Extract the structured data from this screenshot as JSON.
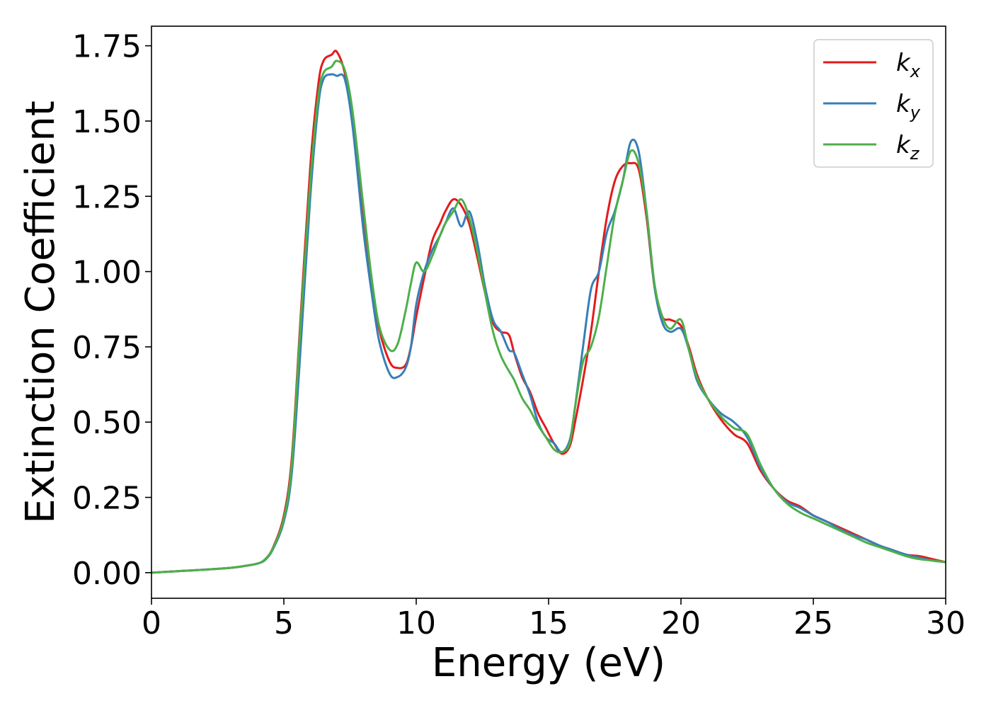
{
  "chart_data": {
    "type": "line",
    "title": "",
    "xlabel": "Energy (eV)",
    "ylabel": "Extinction Coefficient",
    "xlim": [
      0,
      30
    ],
    "ylim": [
      -0.085,
      1.815
    ],
    "xticks": [
      0,
      5,
      10,
      15,
      20,
      25,
      30
    ],
    "xtick_labels": [
      "0",
      "5",
      "10",
      "15",
      "20",
      "25",
      "30"
    ],
    "yticks": [
      0,
      0.25,
      0.5,
      0.75,
      1.0,
      1.25,
      1.5,
      1.75
    ],
    "ytick_labels": [
      "0.00",
      "0.25",
      "0.50",
      "0.75",
      "1.00",
      "1.25",
      "1.50",
      "1.75"
    ],
    "grid": false,
    "legend_position": "top-right",
    "series": [
      {
        "name": "k",
        "subscript": "x",
        "color": "#e41a1c",
        "x": [
          0,
          1,
          2,
          3,
          3.5,
          4,
          4.3,
          4.6,
          5,
          5.3,
          5.6,
          6,
          6.3,
          6.5,
          6.8,
          7,
          7.3,
          7.6,
          8,
          8.3,
          8.6,
          9,
          9.3,
          9.6,
          9.8,
          10,
          10.3,
          10.6,
          10.9,
          11.1,
          11.4,
          11.7,
          12,
          12.3,
          12.6,
          12.9,
          13.2,
          13.5,
          13.7,
          14,
          14.3,
          14.6,
          14.9,
          15.2,
          15.5,
          15.8,
          16,
          16.3,
          16.6,
          16.9,
          17.2,
          17.5,
          17.8,
          18.1,
          18.4,
          18.7,
          19,
          19.3,
          19.6,
          20,
          20.3,
          20.6,
          21,
          21.5,
          22,
          22.5,
          23,
          23.5,
          24,
          24.5,
          25,
          25.5,
          26,
          26.5,
          27,
          27.5,
          28,
          28.5,
          29,
          29.5,
          30
        ],
        "values": [
          0,
          0.005,
          0.01,
          0.016,
          0.022,
          0.03,
          0.045,
          0.085,
          0.19,
          0.38,
          0.8,
          1.35,
          1.62,
          1.7,
          1.72,
          1.73,
          1.66,
          1.5,
          1.2,
          0.98,
          0.81,
          0.7,
          0.68,
          0.69,
          0.75,
          0.85,
          0.98,
          1.1,
          1.16,
          1.2,
          1.24,
          1.22,
          1.16,
          1.05,
          0.93,
          0.83,
          0.8,
          0.79,
          0.73,
          0.65,
          0.6,
          0.53,
          0.48,
          0.43,
          0.395,
          0.42,
          0.5,
          0.64,
          0.8,
          1.0,
          1.18,
          1.3,
          1.35,
          1.36,
          1.34,
          1.18,
          0.95,
          0.85,
          0.84,
          0.82,
          0.75,
          0.66,
          0.58,
          0.51,
          0.46,
          0.43,
          0.34,
          0.28,
          0.24,
          0.22,
          0.19,
          0.17,
          0.15,
          0.13,
          0.11,
          0.09,
          0.075,
          0.06,
          0.055,
          0.045,
          0.035
        ]
      },
      {
        "name": "k",
        "subscript": "y",
        "color": "#377eb8",
        "x": [
          0,
          1,
          2,
          3,
          3.5,
          4,
          4.3,
          4.6,
          5,
          5.3,
          5.6,
          6,
          6.3,
          6.5,
          6.8,
          7,
          7.3,
          7.6,
          8,
          8.3,
          8.6,
          9,
          9.3,
          9.6,
          9.8,
          10,
          10.3,
          10.6,
          10.9,
          11.1,
          11.4,
          11.7,
          12,
          12.3,
          12.6,
          12.9,
          13.2,
          13.5,
          13.7,
          14,
          14.3,
          14.6,
          14.9,
          15.2,
          15.5,
          15.8,
          16,
          16.3,
          16.6,
          16.9,
          17.2,
          17.5,
          17.8,
          18.1,
          18.4,
          18.7,
          19,
          19.3,
          19.6,
          20,
          20.3,
          20.6,
          21,
          21.5,
          22,
          22.5,
          23,
          23.5,
          24,
          24.5,
          25,
          25.5,
          26,
          26.5,
          27,
          27.5,
          28,
          28.5,
          29,
          29.5,
          30
        ],
        "values": [
          0,
          0.005,
          0.01,
          0.016,
          0.022,
          0.03,
          0.043,
          0.08,
          0.17,
          0.33,
          0.7,
          1.25,
          1.55,
          1.64,
          1.655,
          1.65,
          1.64,
          1.48,
          1.14,
          0.94,
          0.77,
          0.66,
          0.65,
          0.68,
          0.75,
          0.89,
          1.0,
          1.07,
          1.12,
          1.16,
          1.21,
          1.15,
          1.2,
          1.1,
          0.95,
          0.84,
          0.8,
          0.74,
          0.73,
          0.66,
          0.59,
          0.5,
          0.45,
          0.43,
          0.4,
          0.44,
          0.55,
          0.75,
          0.94,
          1.0,
          1.13,
          1.2,
          1.3,
          1.43,
          1.4,
          1.2,
          0.95,
          0.83,
          0.8,
          0.81,
          0.74,
          0.64,
          0.58,
          0.53,
          0.5,
          0.45,
          0.35,
          0.28,
          0.235,
          0.215,
          0.19,
          0.17,
          0.145,
          0.125,
          0.11,
          0.09,
          0.075,
          0.06,
          0.05,
          0.04,
          0.035
        ]
      },
      {
        "name": "k",
        "subscript": "z",
        "color": "#4daf4a",
        "x": [
          0,
          1,
          2,
          3,
          3.5,
          4,
          4.3,
          4.6,
          5,
          5.3,
          5.6,
          6,
          6.3,
          6.5,
          6.8,
          7,
          7.3,
          7.6,
          8,
          8.3,
          8.6,
          9,
          9.3,
          9.6,
          9.8,
          10,
          10.3,
          10.6,
          10.9,
          11.1,
          11.4,
          11.7,
          12,
          12.3,
          12.6,
          12.9,
          13.2,
          13.5,
          13.7,
          14,
          14.3,
          14.6,
          14.9,
          15.2,
          15.5,
          15.8,
          16,
          16.3,
          16.6,
          16.9,
          17.2,
          17.5,
          17.8,
          18.1,
          18.4,
          18.7,
          19,
          19.3,
          19.6,
          20,
          20.3,
          20.6,
          21,
          21.5,
          22,
          22.5,
          23,
          23.5,
          24,
          24.5,
          25,
          25.5,
          26,
          26.5,
          27,
          27.5,
          28,
          28.5,
          29,
          29.5,
          30
        ],
        "values": [
          0,
          0.005,
          0.01,
          0.016,
          0.022,
          0.03,
          0.045,
          0.083,
          0.18,
          0.36,
          0.78,
          1.3,
          1.58,
          1.66,
          1.68,
          1.7,
          1.67,
          1.53,
          1.22,
          0.99,
          0.82,
          0.74,
          0.76,
          0.87,
          0.96,
          1.03,
          1.0,
          1.05,
          1.12,
          1.16,
          1.2,
          1.24,
          1.18,
          1.07,
          0.93,
          0.8,
          0.72,
          0.67,
          0.64,
          0.58,
          0.54,
          0.49,
          0.45,
          0.41,
          0.4,
          0.43,
          0.55,
          0.7,
          0.75,
          0.85,
          1.02,
          1.19,
          1.3,
          1.4,
          1.36,
          1.2,
          0.96,
          0.85,
          0.81,
          0.84,
          0.74,
          0.65,
          0.58,
          0.52,
          0.48,
          0.46,
          0.36,
          0.28,
          0.23,
          0.2,
          0.18,
          0.16,
          0.14,
          0.12,
          0.1,
          0.085,
          0.07,
          0.055,
          0.045,
          0.04,
          0.035
        ]
      }
    ]
  }
}
